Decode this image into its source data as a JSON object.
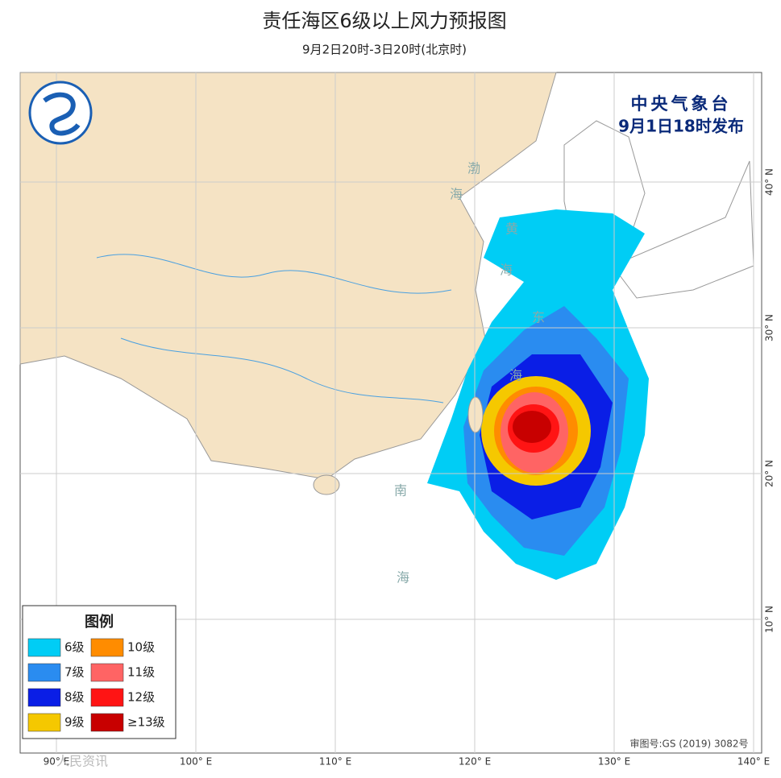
{
  "header": {
    "title": "责任海区6级以上风力预报图",
    "subtitle": "9月2日20时-3日20时(北京时)"
  },
  "publisher": {
    "name": "中央气象台",
    "issued": "9月1日18时发布"
  },
  "map": {
    "lon_lines": [
      {
        "value": 90,
        "label": "90° E"
      },
      {
        "value": 100,
        "label": "100° E"
      },
      {
        "value": 110,
        "label": "110° E"
      },
      {
        "value": 120,
        "label": "120° E"
      },
      {
        "value": 130,
        "label": "130° E"
      },
      {
        "value": 140,
        "label": "140° E"
      }
    ],
    "lat_lines": [
      {
        "value": 40,
        "label": "40° N"
      },
      {
        "value": 30,
        "label": "30° N"
      },
      {
        "value": 20,
        "label": "20° N"
      },
      {
        "value": 10,
        "label": "10° N"
      }
    ],
    "sea_labels": [
      "渤",
      "海",
      "黄",
      "海",
      "东",
      "海",
      "南",
      "海"
    ]
  },
  "legend": {
    "title": "图例",
    "items": [
      {
        "label": "6级",
        "color": "#00cdf5"
      },
      {
        "label": "7级",
        "color": "#2a8cf0"
      },
      {
        "label": "8级",
        "color": "#0a1ee6"
      },
      {
        "label": "9级",
        "color": "#f5c800"
      },
      {
        "label": "10级",
        "color": "#ff8c00"
      },
      {
        "label": "11级",
        "color": "#ff6464"
      },
      {
        "label": "12级",
        "color": "#ff1414"
      },
      {
        "label": "≥13级",
        "color": "#c80000"
      }
    ]
  },
  "footer": {
    "approval": "审图号:GS (2019) 3082号",
    "watermark": "人民资讯"
  }
}
